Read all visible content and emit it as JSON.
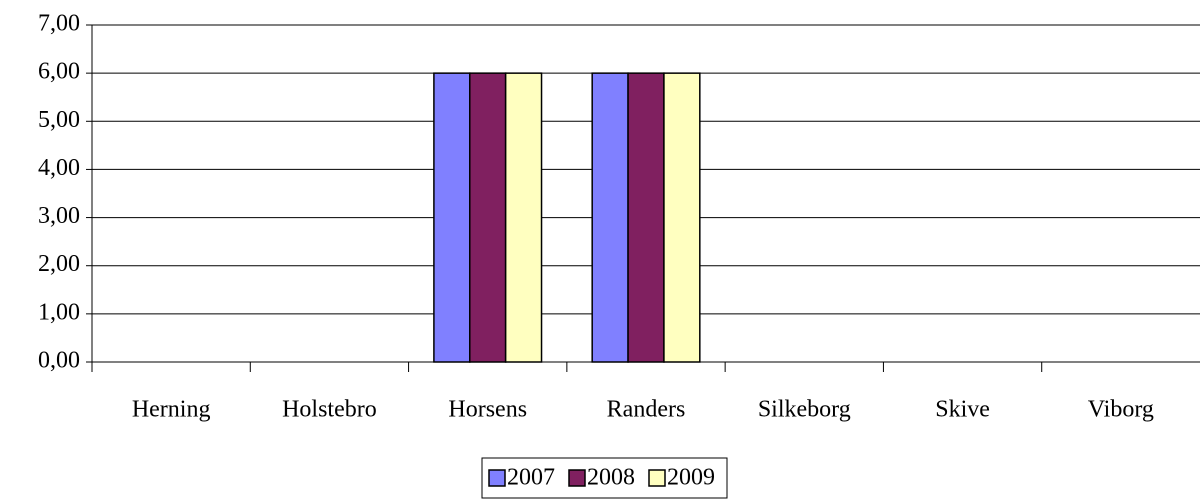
{
  "chart_data": {
    "type": "bar",
    "categories": [
      "Herning",
      "Holstebro",
      "Horsens",
      "Randers",
      "Silkeborg",
      "Skive",
      "Viborg"
    ],
    "series": [
      {
        "name": "2007",
        "color": "#8080ff",
        "values": [
          0,
          0,
          6,
          6,
          0,
          0,
          0
        ]
      },
      {
        "name": "2008",
        "color": "#802060",
        "values": [
          0,
          0,
          6,
          6,
          0,
          0,
          0
        ]
      },
      {
        "name": "2009",
        "color": "#ffffc0",
        "values": [
          0,
          0,
          6,
          6,
          0,
          0,
          0
        ]
      }
    ],
    "ylim": [
      0,
      7
    ],
    "yticks": [
      {
        "value": 0,
        "label": "0,00"
      },
      {
        "value": 1,
        "label": "1,00"
      },
      {
        "value": 2,
        "label": "2,00"
      },
      {
        "value": 3,
        "label": "3,00"
      },
      {
        "value": 4,
        "label": "4,00"
      },
      {
        "value": 5,
        "label": "5,00"
      },
      {
        "value": 6,
        "label": "6,00"
      },
      {
        "value": 7,
        "label": "7,00"
      }
    ],
    "grid": true,
    "legend": "bottom"
  }
}
